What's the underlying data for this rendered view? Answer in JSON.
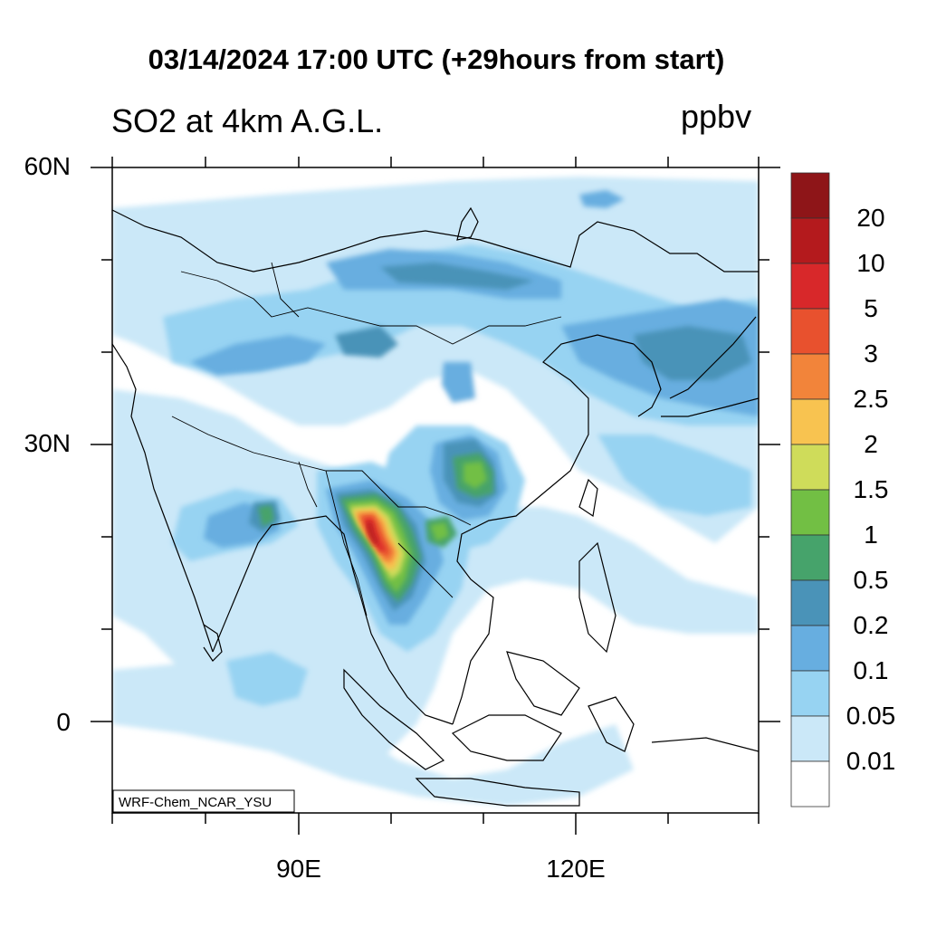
{
  "title": "03/14/2024 17:00 UTC (+29hours from start)",
  "subtitle_left": "SO2 at 4km A.G.L.",
  "subtitle_right": "ppbv",
  "model_label": "WRF-Chem_NCAR_YSU",
  "axes": {
    "lat_labels": [
      "60N",
      "30N",
      "0"
    ],
    "lon_labels": [
      "90E",
      "120E"
    ]
  },
  "colorbar": {
    "labels": [
      "20",
      "10",
      "5",
      "3",
      "2.5",
      "2",
      "1.5",
      "1",
      "0.5",
      "0.2",
      "0.1",
      "0.05",
      "0.01"
    ],
    "colors": [
      "#8e1518",
      "#b41a1d",
      "#d8282a",
      "#e8512e",
      "#f2843a",
      "#f8c350",
      "#cfdc5a",
      "#72bf44",
      "#46a36b",
      "#4a93b8",
      "#67aee0",
      "#97d3f2",
      "#cbe8f8",
      "#ffffff"
    ]
  },
  "field_colors": {
    "v001": "#cbe8f8",
    "v005": "#97d3f2",
    "v01": "#67aee0",
    "v02": "#4a93b8",
    "v05": "#46a36b",
    "v1": "#72bf44",
    "v15": "#cfdc5a",
    "v2": "#f8c350",
    "v25": "#f2843a",
    "v3": "#e8512e",
    "v5": "#d8282a",
    "v10": "#b41a1d"
  }
}
